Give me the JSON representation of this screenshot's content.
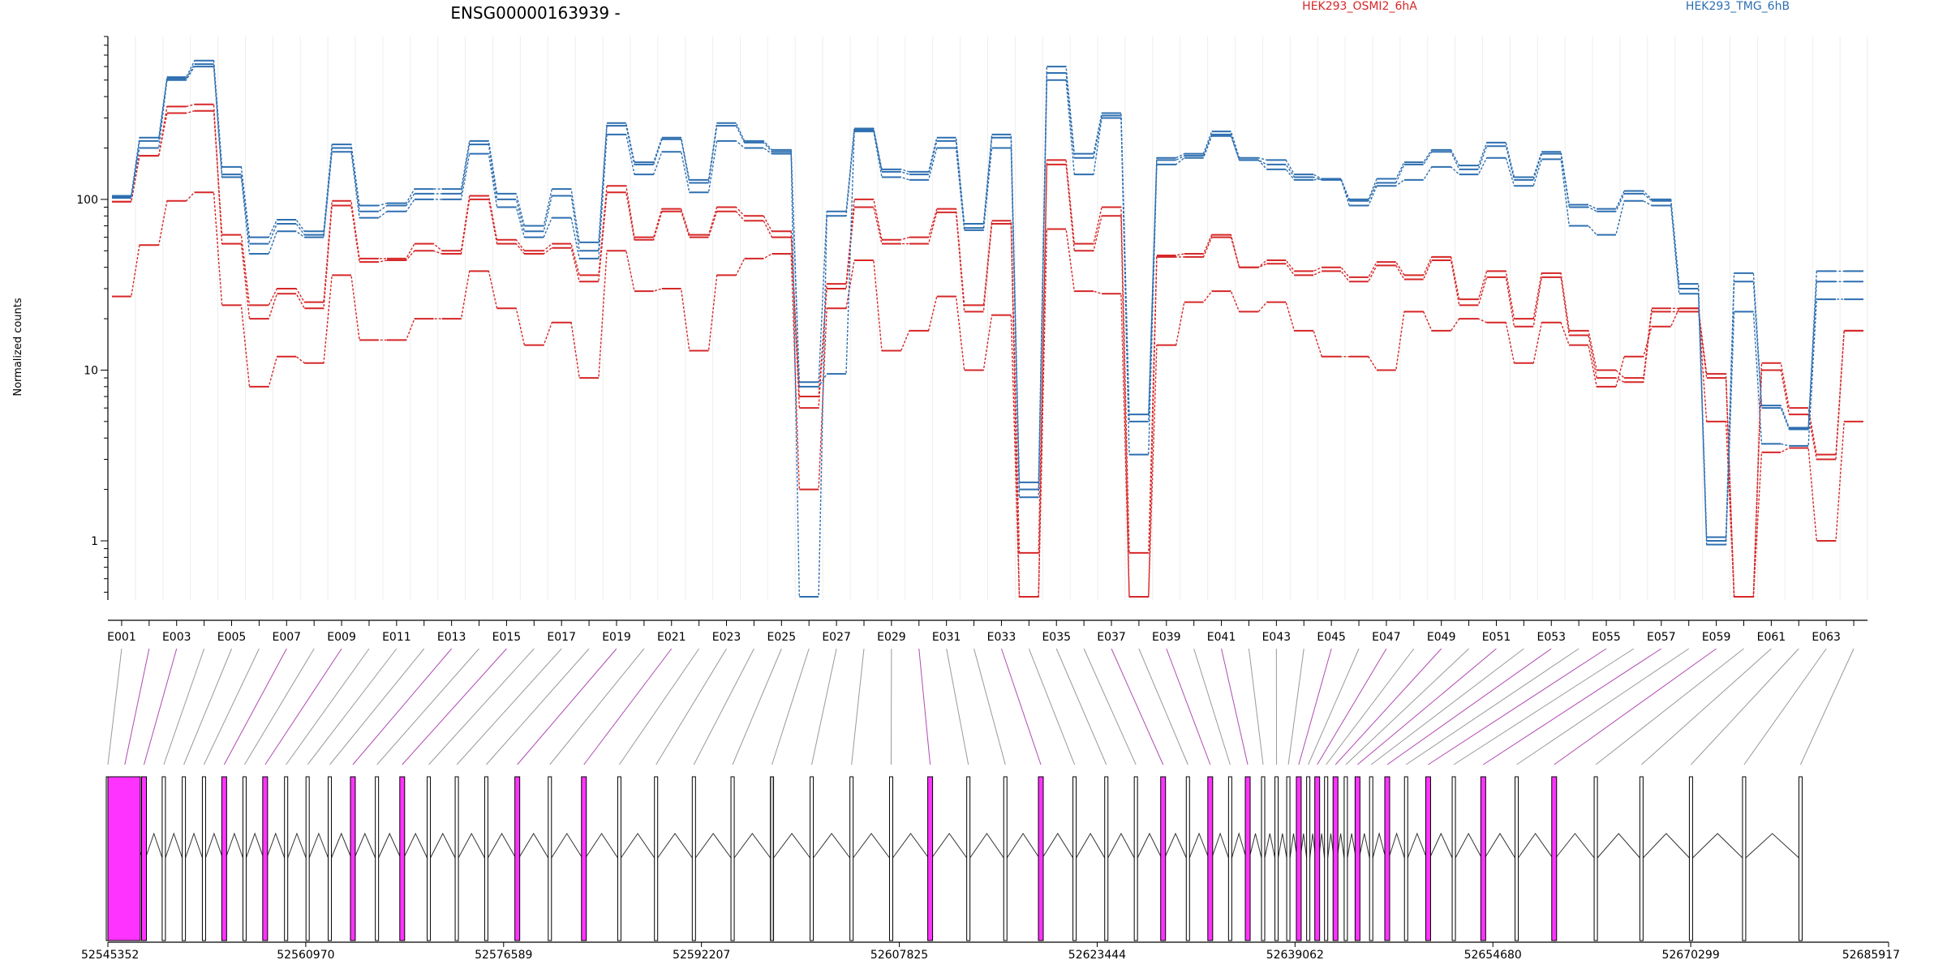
{
  "header": {
    "title": "ENSG00000163939 -",
    "legend": [
      {
        "name": "HEK293_OSMI2_6hA",
        "color": "#d62728"
      },
      {
        "name": "HEK293_TMG_6hB",
        "color": "#2e6fb0"
      }
    ]
  },
  "colors": {
    "condA": "#d62728",
    "condB": "#2e6fb0",
    "highlight": "#ff33ff",
    "exon_plain": "#ffffff",
    "exon_gray": "#c8c8c8",
    "intron": "#333333"
  },
  "chart_data": {
    "type": "line",
    "title": "ENSG00000163939 -",
    "ylabel": "Normalized counts",
    "yscale": "log",
    "ylim": [
      0.45,
      900
    ],
    "yticks": [
      "1",
      "10",
      "100"
    ],
    "exon_labels": [
      "E001",
      "E003",
      "E005",
      "E007",
      "E009",
      "E011",
      "E013",
      "E015",
      "E017",
      "E019",
      "E021",
      "E023",
      "E025",
      "E027",
      "E029",
      "E031",
      "E033",
      "E035",
      "E037",
      "E039",
      "E041",
      "E043",
      "E045",
      "E047",
      "E049",
      "E051",
      "E053",
      "E055",
      "E057",
      "E059",
      "E061",
      "E063"
    ],
    "exons": [
      "E001",
      "E002",
      "E003",
      "E004",
      "E005",
      "E006",
      "E007",
      "E008",
      "E009",
      "E010",
      "E011",
      "E012",
      "E013",
      "E014",
      "E015",
      "E016",
      "E017",
      "E018",
      "E019",
      "E020",
      "E021",
      "E022",
      "E023",
      "E024",
      "E025",
      "E026",
      "E027",
      "E028",
      "E029",
      "E030",
      "E031",
      "E032",
      "E033",
      "E034",
      "E035",
      "E036",
      "E037",
      "E038",
      "E039",
      "E040",
      "E041",
      "E042",
      "E043",
      "E044",
      "E045",
      "E046",
      "E047",
      "E048",
      "E049",
      "E050",
      "E051",
      "E052",
      "E053",
      "E054",
      "E055",
      "E056",
      "E057",
      "E058",
      "E059",
      "E060",
      "E061",
      "E062",
      "E063",
      "E064"
    ],
    "series": [
      {
        "name": "HEK293_OSMI2_6hA",
        "values": [
          97,
          180,
          320,
          330,
          62,
          24,
          30,
          25,
          98,
          45,
          45,
          55,
          50,
          105,
          58,
          50,
          55,
          36,
          120,
          60,
          88,
          62,
          90,
          80,
          65,
          6,
          32,
          100,
          58,
          60,
          88,
          24,
          75,
          0.85,
          170,
          55,
          90,
          0.85,
          47,
          48,
          62,
          40,
          44,
          38,
          40,
          35,
          43,
          36,
          46,
          26,
          38,
          20,
          37,
          17,
          10,
          9,
          23,
          23,
          9.5,
          0.47,
          11,
          6,
          3.2,
          17
        ]
      },
      {
        "name": "HEK293_OSMI2_6hA",
        "values": [
          97,
          180,
          350,
          360,
          55,
          20,
          28,
          23,
          92,
          43,
          44,
          50,
          48,
          100,
          55,
          48,
          52,
          33,
          110,
          58,
          85,
          60,
          85,
          75,
          60,
          7,
          30,
          90,
          55,
          55,
          84,
          22,
          72,
          0.47,
          160,
          50,
          80,
          0.47,
          46,
          46,
          60,
          40,
          42,
          36,
          38,
          33,
          41,
          34,
          44,
          24,
          35,
          18,
          35,
          16,
          9,
          8.5,
          22,
          22,
          9,
          0.47,
          10,
          5.5,
          3,
          17
        ]
      },
      {
        "name": "HEK293_OSMI2_6hA",
        "values": [
          27,
          54,
          98,
          110,
          24,
          8,
          12,
          11,
          36,
          15,
          15,
          20,
          20,
          38,
          23,
          14,
          19,
          9,
          50,
          29,
          30,
          13,
          36,
          45,
          48,
          2,
          23,
          44,
          13,
          17,
          27,
          10,
          21,
          0.47,
          67,
          29,
          28,
          0.47,
          14,
          25,
          29,
          22,
          25,
          17,
          12,
          12,
          10,
          22,
          17,
          20,
          19,
          11,
          19,
          14,
          8,
          12,
          18,
          23,
          5,
          0.47,
          3.3,
          3.5,
          1,
          5
        ]
      },
      {
        "name": "HEK293_TMG_6hB",
        "values": [
          105,
          230,
          520,
          650,
          155,
          60,
          76,
          65,
          210,
          92,
          95,
          115,
          115,
          220,
          108,
          70,
          115,
          56,
          280,
          165,
          230,
          130,
          280,
          220,
          195,
          8.5,
          85,
          260,
          150,
          145,
          230,
          72,
          240,
          2.2,
          600,
          185,
          320,
          5.5,
          175,
          185,
          250,
          175,
          170,
          140,
          132,
          100,
          132,
          165,
          195,
          158,
          215,
          135,
          190,
          93,
          88,
          112,
          100,
          32,
          1.05,
          37,
          6.2,
          4.6,
          38,
          38
        ]
      },
      {
        "name": "HEK293_TMG_6hB",
        "values": [
          102,
          220,
          510,
          620,
          140,
          55,
          72,
          62,
          200,
          85,
          92,
          108,
          108,
          210,
          100,
          65,
          105,
          50,
          270,
          160,
          225,
          125,
          270,
          215,
          190,
          0.47,
          80,
          255,
          145,
          140,
          220,
          68,
          230,
          2,
          550,
          175,
          310,
          5,
          170,
          180,
          240,
          170,
          160,
          135,
          130,
          98,
          125,
          160,
          190,
          150,
          205,
          130,
          185,
          90,
          85,
          108,
          98,
          30,
          1,
          33,
          6,
          4.5,
          33,
          33
        ]
      },
      {
        "name": "HEK293_TMG_6hB",
        "values": [
          103,
          200,
          500,
          600,
          135,
          48,
          65,
          60,
          190,
          78,
          85,
          100,
          100,
          185,
          90,
          60,
          78,
          45,
          240,
          140,
          190,
          110,
          220,
          200,
          185,
          8,
          9.5,
          250,
          135,
          130,
          200,
          66,
          200,
          1.8,
          500,
          140,
          300,
          3.2,
          160,
          175,
          235,
          170,
          150,
          130,
          132,
          92,
          120,
          130,
          155,
          140,
          175,
          120,
          172,
          70,
          62,
          98,
          92,
          28,
          0.95,
          22,
          3.7,
          3.6,
          26,
          26
        ]
      }
    ],
    "genome_ticks": [
      "52545352",
      "52560970",
      "52576589",
      "52592207",
      "52607825",
      "52623444",
      "52639062",
      "52654680",
      "52670299",
      "52685917"
    ]
  }
}
